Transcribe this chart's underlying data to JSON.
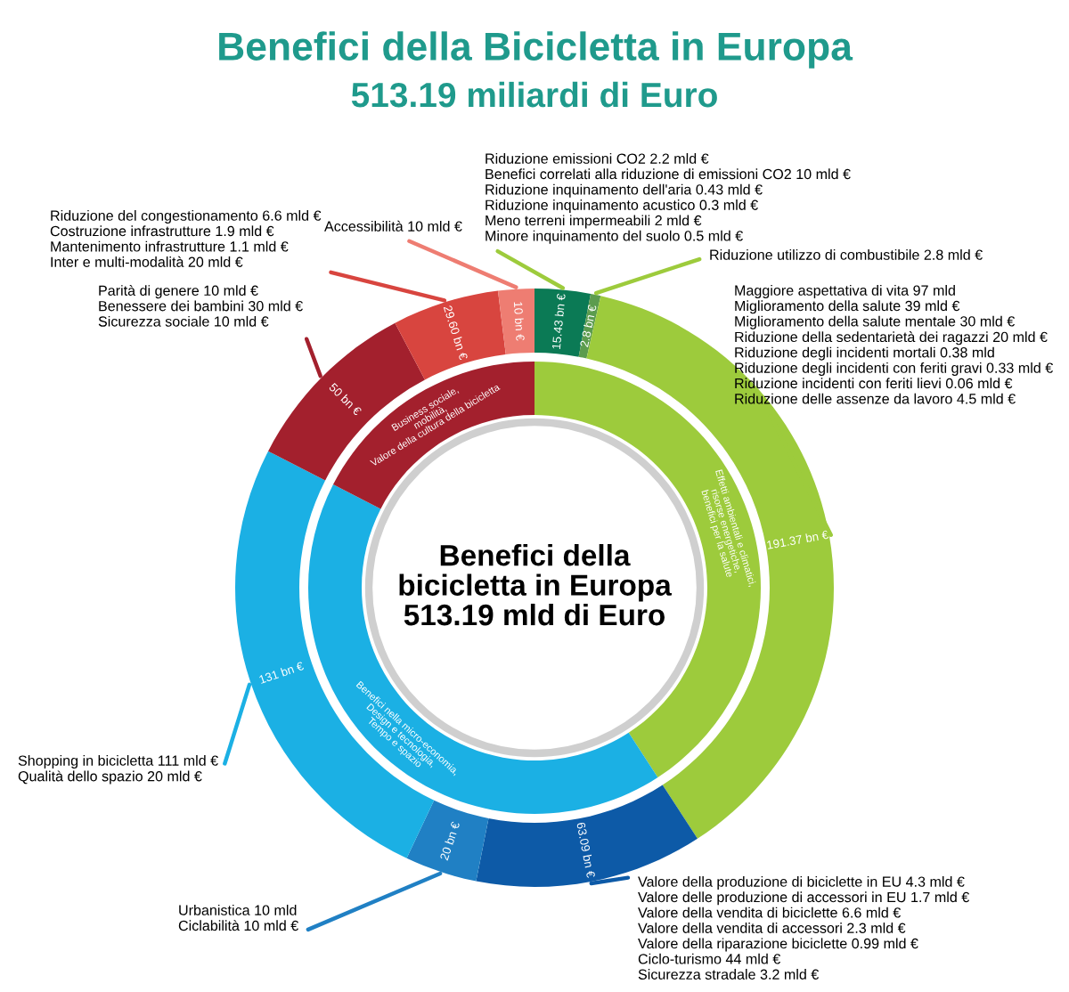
{
  "chart_data": {
    "type": "donut",
    "title": "Benefici della Bicicletta in Europa",
    "subtitle": "513.19 miliardi di Euro",
    "series": [
      {
        "values": [
          15.43,
          2.8,
          191.37,
          63.09,
          20,
          131,
          50,
          29.6,
          10
        ],
        "colors": [
          "#0b7a55",
          "#5c9c4e",
          "#9dcb3c",
          "#0d5aa7",
          "#2080c4",
          "#1bb0e4",
          "#a3202d",
          "#d8453f",
          "#ee7d72"
        ],
        "value_labels": [
          "15.43 bn €",
          "2.8 bn €",
          "191.37 bn €",
          "63.09 bn €",
          "20 bn €",
          "131 bn €",
          "50 bn €",
          "29.60 bn €",
          "10 bn €"
        ]
      },
      {
        "values": [
          40.83,
          41.71,
          17.46
        ],
        "colors": [
          "#9dcb3c",
          "#1bb0e4",
          "#a3202d"
        ]
      }
    ],
    "annotations": [
      "Benefici della\nbicicletta in Europa\n513.19 mld di Euro",
      "Riduzione emissioni CO2 2.2 mld €\nBenefici correlati alla riduzione di emissioni CO2 10 mld €\nRiduzione inquinamento dell'aria 0.43 mld €\nRiduzione inquinamento acustico 0.3 mld €\nMeno terreni impermeabili 2 mld €\nMinore inquinamento del suolo 0.5 mld €",
      "Riduzione utilizzo di combustibile 2.8 mld €",
      "Maggiore aspettativa di vita 97 mld\nMiglioramento della salute 39 mld €\nMiglioramento della salute mentale 30 mld €\nRiduzione della sedentarietà dei ragazzi 20 mld €\nRiduzione degli incidenti mortali 0.38 mld\nRiduzione degli incidenti con feriti gravi 0.33 mld €\nRiduzione incidenti con feriti lievi 0.06 mld €\nRiduzione delle assenze da lavoro 4.5 mld €",
      "Valore della produzione di biciclette in EU 4.3 mld €\nValore delle produzione di accessori in EU 1.7 mld €\nValore della vendita di biciclette 6.6 mld €\nValore della vendita di accessori 2.3 mld €\nValore della riparazione biciclette 0.99 mld €\nCiclo-turismo 44 mld €\nSicurezza stradale 3.2 mld €",
      "Urbanistica 10 mld\nCiclabilità 10 mld €",
      "Shopping in bicicletta 111 mld €\nQualità dello spazio 20 mld €",
      "Parità di genere 10 mld €\nBenessere dei bambini 30 mld €\nSicurezza sociale 10 mld €",
      "Riduzione del congestionamento 6.6 mld €\nCostruzione infrastrutture 1.9 mld €\nMantenimento infrastrutture 1.1 mld €\nInter e multi-modalità 20 mld €",
      "Accessibilità 10 mld €",
      "Effetti ambientali e climatici, risorse energetiche, benefici per la salute",
      "Benefici nella micro-economia, Design e tecnologia, Tempo e spazio",
      "Business sociale, mobilità, Valore della cultura della bicicletta"
    ]
  }
}
